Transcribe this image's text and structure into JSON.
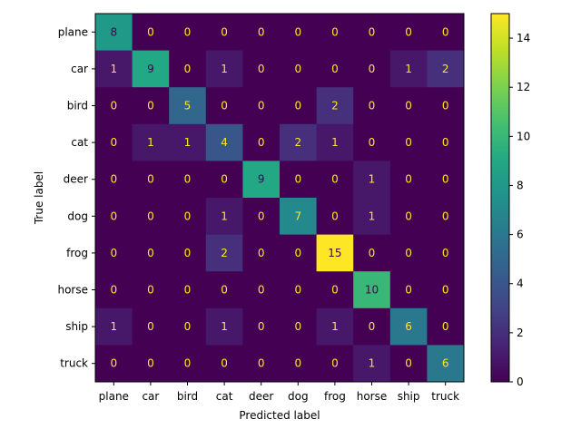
{
  "chart_data": {
    "type": "heatmap",
    "xlabel": "Predicted label",
    "ylabel": "True label",
    "categories": [
      "plane",
      "car",
      "bird",
      "cat",
      "deer",
      "dog",
      "frog",
      "horse",
      "ship",
      "truck"
    ],
    "matrix": [
      [
        8,
        0,
        0,
        0,
        0,
        0,
        0,
        0,
        0,
        0
      ],
      [
        1,
        9,
        0,
        1,
        0,
        0,
        0,
        0,
        1,
        2
      ],
      [
        0,
        0,
        5,
        0,
        0,
        0,
        2,
        0,
        0,
        0
      ],
      [
        0,
        1,
        1,
        4,
        0,
        2,
        1,
        0,
        0,
        0
      ],
      [
        0,
        0,
        0,
        0,
        9,
        0,
        0,
        1,
        0,
        0
      ],
      [
        0,
        0,
        0,
        1,
        0,
        7,
        0,
        1,
        0,
        0
      ],
      [
        0,
        0,
        0,
        2,
        0,
        0,
        15,
        0,
        0,
        0
      ],
      [
        0,
        0,
        0,
        0,
        0,
        0,
        0,
        10,
        0,
        0
      ],
      [
        1,
        0,
        0,
        1,
        0,
        0,
        1,
        0,
        6,
        0
      ],
      [
        0,
        0,
        0,
        0,
        0,
        0,
        0,
        1,
        0,
        6
      ]
    ],
    "colormap": "viridis",
    "vmin": 0,
    "vmax": 15,
    "colorbar_ticks": [
      0,
      2,
      4,
      6,
      8,
      10,
      12,
      14
    ],
    "grid": false
  }
}
